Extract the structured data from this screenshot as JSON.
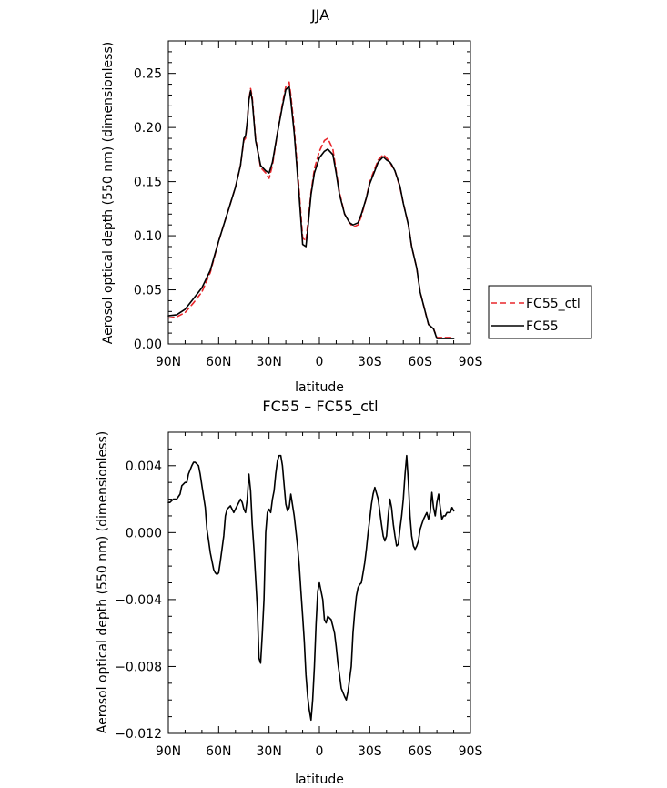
{
  "chart_data": [
    {
      "type": "line",
      "title": "JJA",
      "xlabel": "latitude",
      "ylabel": "Aerosol optical depth (550 nm) (dimensionless)",
      "xlim": [
        90,
        -90
      ],
      "ylim": [
        0,
        0.28
      ],
      "xticks": [
        90,
        60,
        30,
        0,
        -30,
        -60,
        -90
      ],
      "xtick_labels": [
        "90N",
        "60N",
        "30N",
        "0",
        "30S",
        "60S",
        "90S"
      ],
      "yticks": [
        0,
        0.05,
        0.1,
        0.15,
        0.2,
        0.25
      ],
      "ytick_labels": [
        "0.00",
        "0.05",
        "0.10",
        "0.15",
        "0.20",
        "0.25"
      ],
      "grid": false,
      "legend_position": "right",
      "series": [
        {
          "name": "FC55_ctl",
          "color": "#e8262b",
          "dashed": true,
          "x": [
            90,
            85,
            80,
            75,
            70,
            65,
            60,
            55,
            50,
            47,
            45,
            44,
            43,
            42,
            41,
            40,
            38,
            35,
            32,
            30,
            28,
            25,
            22,
            20,
            18,
            17,
            15,
            12,
            10,
            8,
            7,
            5,
            3,
            0,
            -3,
            -5,
            -8,
            -10,
            -12,
            -15,
            -18,
            -20,
            -23,
            -25,
            -28,
            -30,
            -33,
            -35,
            -38,
            -40,
            -42,
            -43,
            -45,
            -48,
            -50,
            -53,
            -55,
            -58,
            -60,
            -63,
            -65,
            -68,
            -70,
            -72,
            -75,
            -80
          ],
          "y": [
            0.024,
            0.025,
            0.029,
            0.038,
            0.048,
            0.066,
            0.095,
            0.12,
            0.145,
            0.165,
            0.188,
            0.19,
            0.205,
            0.225,
            0.236,
            0.228,
            0.19,
            0.163,
            0.158,
            0.153,
            0.165,
            0.195,
            0.222,
            0.238,
            0.242,
            0.23,
            0.2,
            0.14,
            0.098,
            0.095,
            0.11,
            0.14,
            0.162,
            0.178,
            0.188,
            0.19,
            0.18,
            0.16,
            0.14,
            0.12,
            0.112,
            0.108,
            0.11,
            0.118,
            0.135,
            0.15,
            0.162,
            0.17,
            0.175,
            0.172,
            0.168,
            0.165,
            0.16,
            0.145,
            0.13,
            0.11,
            0.09,
            0.07,
            0.048,
            0.03,
            0.018,
            0.014,
            0.006,
            0.006,
            0.006,
            0.006
          ]
        },
        {
          "name": "FC55",
          "color": "#000000",
          "dashed": false,
          "x": [
            90,
            85,
            80,
            75,
            70,
            65,
            60,
            55,
            50,
            47,
            45,
            44,
            43,
            42,
            41,
            40,
            38,
            35,
            32,
            30,
            28,
            25,
            22,
            20,
            18,
            17,
            15,
            12,
            10,
            8,
            7,
            5,
            3,
            0,
            -3,
            -5,
            -8,
            -10,
            -12,
            -15,
            -18,
            -20,
            -23,
            -25,
            -28,
            -30,
            -33,
            -35,
            -38,
            -40,
            -42,
            -43,
            -45,
            -48,
            -50,
            -53,
            -55,
            -58,
            -60,
            -63,
            -65,
            -68,
            -70,
            -72,
            -75,
            -80
          ],
          "y": [
            0.026,
            0.027,
            0.032,
            0.042,
            0.052,
            0.068,
            0.095,
            0.12,
            0.145,
            0.165,
            0.19,
            0.192,
            0.205,
            0.225,
            0.234,
            0.225,
            0.188,
            0.165,
            0.16,
            0.158,
            0.168,
            0.195,
            0.22,
            0.235,
            0.238,
            0.225,
            0.195,
            0.135,
            0.092,
            0.09,
            0.105,
            0.138,
            0.158,
            0.172,
            0.178,
            0.18,
            0.175,
            0.158,
            0.138,
            0.12,
            0.112,
            0.11,
            0.112,
            0.12,
            0.135,
            0.148,
            0.16,
            0.168,
            0.173,
            0.17,
            0.168,
            0.166,
            0.16,
            0.146,
            0.13,
            0.11,
            0.09,
            0.07,
            0.048,
            0.03,
            0.018,
            0.014,
            0.005,
            0.005,
            0.005,
            0.005
          ]
        }
      ]
    },
    {
      "type": "line",
      "title": "FC55 – FC55_ctl",
      "xlabel": "latitude",
      "ylabel": "Aerosol optical depth (550 nm) (dimensionless)",
      "xlim": [
        90,
        -90
      ],
      "ylim": [
        -0.012,
        0.006
      ],
      "xticks": [
        90,
        60,
        30,
        0,
        -30,
        -60,
        -90
      ],
      "xtick_labels": [
        "90N",
        "60N",
        "30N",
        "0",
        "30S",
        "60S",
        "90S"
      ],
      "yticks": [
        -0.012,
        -0.008,
        -0.004,
        0,
        0.004
      ],
      "ytick_labels": [
        "−0.012",
        "−0.008",
        "−0.004",
        "0.000",
        "0.004"
      ],
      "grid": false,
      "series": [
        {
          "color": "#000000",
          "dashed": false,
          "x": [
            90,
            89,
            87,
            85,
            83,
            82,
            80,
            79,
            78,
            76,
            75,
            74,
            72,
            71,
            70,
            68,
            67,
            66,
            65,
            63,
            62,
            61,
            60,
            59,
            57,
            56,
            55,
            53,
            52,
            51,
            49,
            47,
            46,
            45,
            44,
            43,
            42,
            41,
            40,
            39,
            37,
            36,
            35,
            34,
            33,
            32,
            31,
            30,
            29,
            28,
            27,
            26,
            25,
            24,
            23,
            22,
            21,
            20,
            19,
            18,
            17,
            15,
            13,
            12,
            11,
            10,
            9,
            8,
            7,
            6,
            5,
            4,
            3,
            2,
            1,
            0,
            -2,
            -3,
            -4,
            -5,
            -7,
            -8,
            -9,
            -10,
            -11,
            -12,
            -13,
            -15,
            -16,
            -17,
            -19,
            -20,
            -21,
            -22,
            -23,
            -24,
            -25,
            -26,
            -27,
            -28,
            -29,
            -30,
            -31,
            -32,
            -33,
            -35,
            -37,
            -38,
            -39,
            -40,
            -41,
            -42,
            -43,
            -44,
            -45,
            -46,
            -47,
            -48,
            -49,
            -50,
            -51,
            -52,
            -53,
            -54,
            -55,
            -56,
            -57,
            -58,
            -59,
            -60,
            -61,
            -62,
            -63,
            -64,
            -65,
            -66,
            -67,
            -68,
            -69,
            -70,
            -71,
            -72,
            -73,
            -74,
            -75,
            -76,
            -77,
            -78,
            -79,
            -80
          ],
          "y": [
            0.0018,
            0.0018,
            0.002,
            0.002,
            0.0023,
            0.0028,
            0.003,
            0.003,
            0.0035,
            0.004,
            0.0042,
            0.0042,
            0.004,
            0.0035,
            0.0028,
            0.0015,
            0.0002,
            -0.0005,
            -0.0012,
            -0.0022,
            -0.0024,
            -0.0025,
            -0.0024,
            -0.0017,
            -0.0002,
            0.001,
            0.0014,
            0.0016,
            0.0014,
            0.0012,
            0.0016,
            0.002,
            0.0018,
            0.0014,
            0.0012,
            0.002,
            0.0035,
            0.0025,
            0.0005,
            -0.001,
            -0.0045,
            -0.0075,
            -0.0078,
            -0.006,
            -0.004,
            0.0,
            0.0012,
            0.0014,
            0.0012,
            0.002,
            0.0025,
            0.0035,
            0.0043,
            0.0046,
            0.0046,
            0.004,
            0.0028,
            0.0017,
            0.0013,
            0.0015,
            0.0023,
            0.001,
            -0.0008,
            -0.002,
            -0.0035,
            -0.005,
            -0.0065,
            -0.0085,
            -0.0098,
            -0.0106,
            -0.0112,
            -0.01,
            -0.008,
            -0.0055,
            -0.0035,
            -0.003,
            -0.004,
            -0.0052,
            -0.0054,
            -0.005,
            -0.0052,
            -0.0056,
            -0.006,
            -0.0068,
            -0.0078,
            -0.0085,
            -0.0093,
            -0.0098,
            -0.01,
            -0.0095,
            -0.008,
            -0.006,
            -0.0048,
            -0.0038,
            -0.0033,
            -0.0031,
            -0.003,
            -0.0024,
            -0.0018,
            -0.001,
            0.0,
            0.0008,
            0.0017,
            0.0023,
            0.0027,
            0.002,
            0.0005,
            -0.0002,
            -0.0005,
            -0.0002,
            0.001,
            0.002,
            0.0015,
            0.0005,
            -0.0002,
            -0.0008,
            -0.0007,
            0.0002,
            0.001,
            0.002,
            0.0035,
            0.0046,
            0.003,
            0.001,
            -0.0002,
            -0.0008,
            -0.001,
            -0.0008,
            -0.0005,
            0.0002,
            0.0005,
            0.0008,
            0.001,
            0.0012,
            0.0008,
            0.0012,
            0.0024,
            0.0015,
            0.001,
            0.0018,
            0.0023,
            0.0015,
            0.0008,
            0.001,
            0.001,
            0.0012,
            0.0012,
            0.0012,
            0.0015,
            0.0013
          ]
        }
      ]
    }
  ]
}
